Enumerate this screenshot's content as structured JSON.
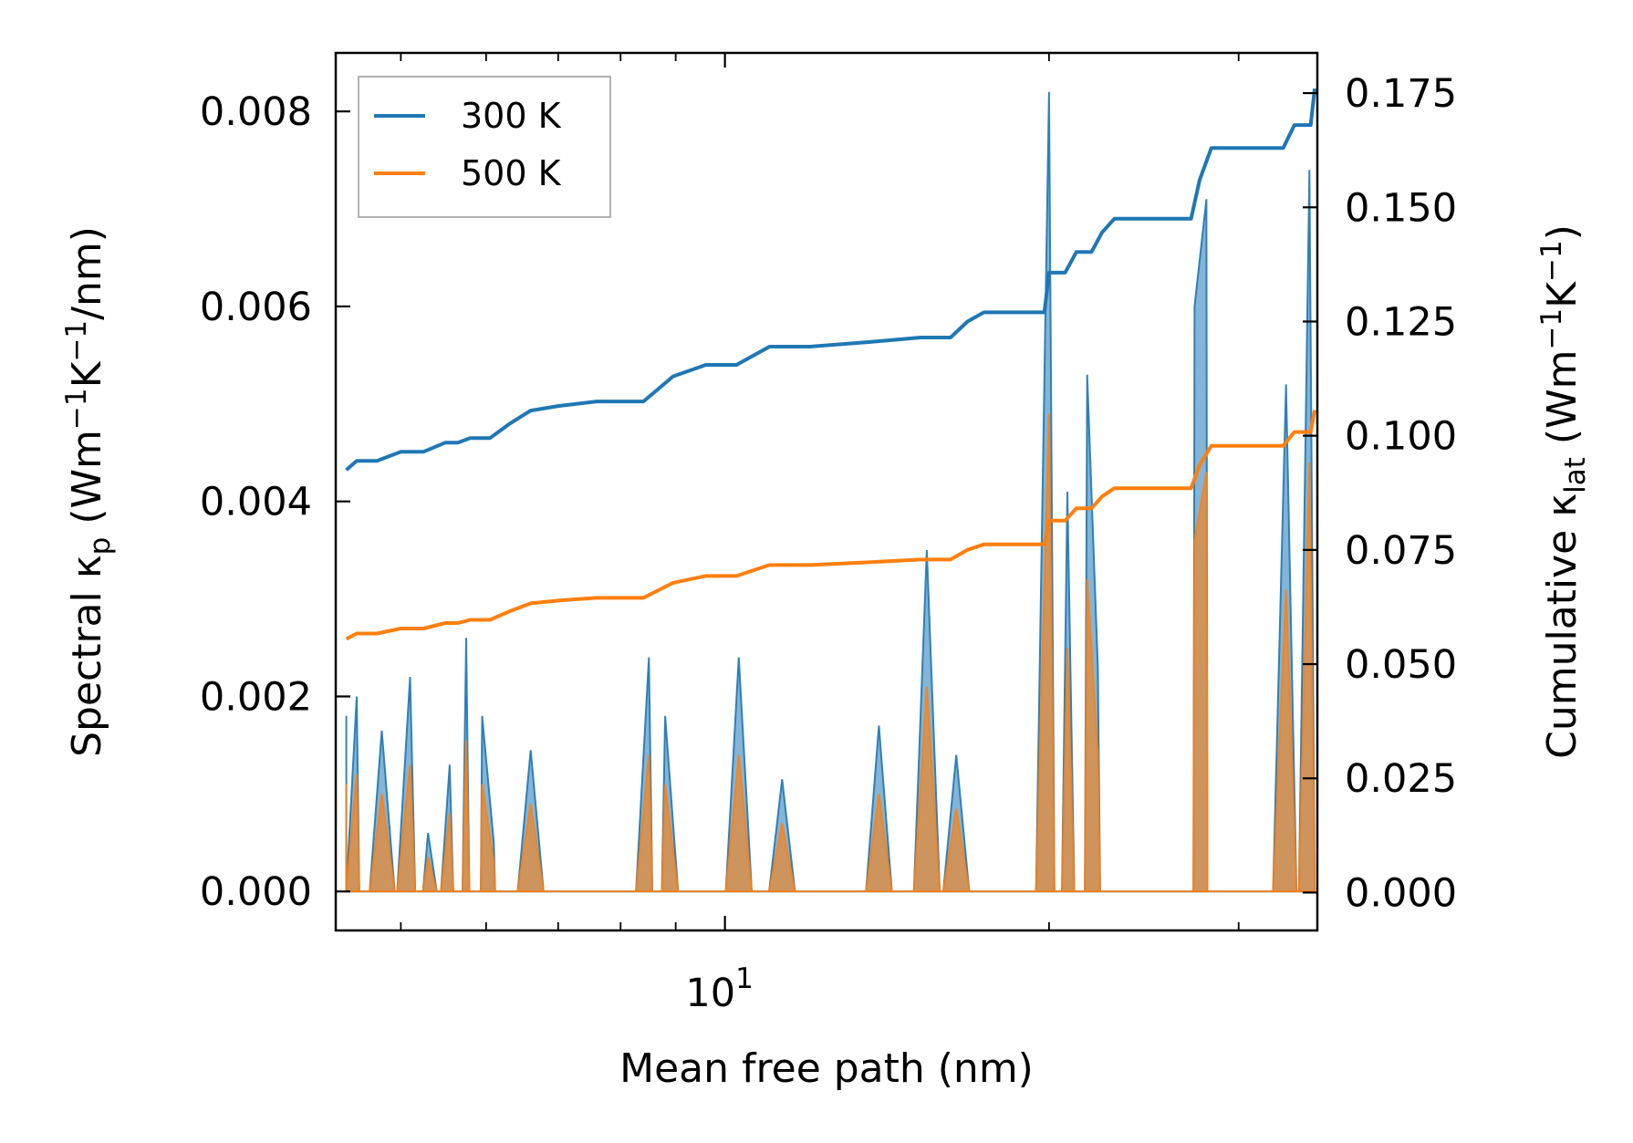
{
  "chart_data": {
    "type": "line",
    "xscale": "log",
    "xlabel": "Mean free path (nm)",
    "xlim": [
      4.35,
      35.5
    ],
    "xticks_major": [
      {
        "value": 10,
        "label": "10",
        "exponent": "1"
      }
    ],
    "xticks_minor": [
      5,
      6,
      7,
      8,
      9,
      20,
      30
    ],
    "ylabel_left": {
      "main": "Spectral κ",
      "sub": "p",
      "rest": " (Wm",
      "sup1": "−1",
      "mid": "K",
      "sup2": "−1",
      "end": "/nm)"
    },
    "ylabel_right": {
      "main": "Cumulative κ",
      "sub": "lat",
      "rest": " (Wm",
      "sup1": "−1",
      "mid": "K",
      "sup2": "−1",
      "end": ")"
    },
    "ylim_left": [
      -0.0004,
      0.0086
    ],
    "ylim_right": [
      -0.0083,
      0.1838
    ],
    "yticks_left": [
      {
        "value": 0.0,
        "label": "0.000"
      },
      {
        "value": 0.002,
        "label": "0.002"
      },
      {
        "value": 0.004,
        "label": "0.004"
      },
      {
        "value": 0.006,
        "label": "0.006"
      },
      {
        "value": 0.008,
        "label": "0.008"
      }
    ],
    "yticks_right": [
      {
        "value": 0.0,
        "label": "0.000"
      },
      {
        "value": 0.025,
        "label": "0.025"
      },
      {
        "value": 0.05,
        "label": "0.050"
      },
      {
        "value": 0.075,
        "label": "0.075"
      },
      {
        "value": 0.1,
        "label": "0.100"
      },
      {
        "value": 0.125,
        "label": "0.125"
      },
      {
        "value": 0.15,
        "label": "0.150"
      },
      {
        "value": 0.175,
        "label": "0.175"
      }
    ],
    "legend": {
      "placement": "top-left"
    },
    "cumulative_series": [
      {
        "name": "300 K",
        "color": "#1f77b4",
        "x": [
          4.45,
          4.55,
          4.75,
          5.0,
          5.25,
          5.5,
          5.65,
          5.8,
          6.05,
          6.3,
          6.6,
          7.0,
          7.6,
          8.4,
          8.95,
          9.6,
          10.25,
          11.0,
          12.0,
          13.6,
          15.2,
          16.2,
          16.8,
          17.4,
          18.3,
          19.8,
          20.0,
          20.7,
          21.2,
          21.9,
          22.4,
          23.0,
          23.6,
          27.1,
          27.6,
          28.3,
          29.0,
          33.0,
          33.8,
          35.0,
          35.3
        ],
        "y": [
          0.0925,
          0.0945,
          0.0945,
          0.0965,
          0.0965,
          0.0985,
          0.0985,
          0.0995,
          0.0995,
          0.1025,
          0.1055,
          0.1065,
          0.1075,
          0.1075,
          0.113,
          0.1155,
          0.1155,
          0.1195,
          0.1195,
          0.1205,
          0.1215,
          0.1215,
          0.125,
          0.127,
          0.127,
          0.127,
          0.1357,
          0.1357,
          0.1402,
          0.1402,
          0.1445,
          0.1475,
          0.1475,
          0.1475,
          0.156,
          0.163,
          0.163,
          0.163,
          0.168,
          0.168,
          0.176
        ],
        "step_points": [
          4.45,
          4.45,
          4.55,
          4.75,
          4.75,
          5.0,
          5.25,
          5.25,
          5.5,
          5.65,
          5.8,
          6.05,
          6.3,
          6.6,
          7.0,
          7.6,
          8.4,
          8.95,
          9.6,
          10.25,
          11.0,
          12.0,
          13.6,
          15.2,
          16.2,
          16.8,
          17.4,
          18.3,
          19.8,
          20.0,
          20.7,
          21.2,
          21.9,
          22.4,
          23.0,
          23.6,
          27.1,
          27.6,
          28.3,
          29.0,
          33.0,
          33.8,
          35.0,
          35.3
        ]
      },
      {
        "name": "500 K",
        "color": "#ff7f0e",
        "x": [
          4.45,
          4.55,
          4.75,
          5.0,
          5.25,
          5.5,
          5.65,
          5.8,
          6.05,
          6.3,
          6.6,
          7.0,
          7.6,
          8.4,
          8.95,
          9.6,
          10.25,
          11.0,
          12.0,
          13.6,
          15.2,
          16.2,
          16.8,
          17.4,
          18.3,
          19.8,
          20.0,
          20.7,
          21.2,
          21.9,
          22.4,
          23.0,
          23.6,
          27.1,
          27.6,
          28.3,
          29.0,
          33.0,
          33.8,
          35.0,
          35.3
        ],
        "y": [
          0.0555,
          0.0567,
          0.0567,
          0.0578,
          0.0578,
          0.059,
          0.059,
          0.0597,
          0.0597,
          0.0615,
          0.0633,
          0.0639,
          0.0645,
          0.0645,
          0.0678,
          0.0693,
          0.0693,
          0.0717,
          0.0717,
          0.0723,
          0.0729,
          0.0729,
          0.075,
          0.0762,
          0.0762,
          0.0762,
          0.0814,
          0.0814,
          0.0841,
          0.0841,
          0.0867,
          0.0885,
          0.0885,
          0.0885,
          0.0936,
          0.0978,
          0.0978,
          0.0978,
          0.1008,
          0.1008,
          0.1056
        ],
        "step_points": []
      }
    ],
    "spectral_series": [
      {
        "name": "300 K",
        "color": "#1f77b4",
        "peaks": [
          [
            4.45,
            0.0018
          ],
          [
            4.55,
            0.002
          ],
          [
            4.8,
            0.00165
          ],
          [
            5.1,
            0.0022
          ],
          [
            5.3,
            0.0006
          ],
          [
            5.55,
            0.0013
          ],
          [
            5.75,
            0.0026
          ],
          [
            5.95,
            0.0018
          ],
          [
            6.1,
            0.0005
          ],
          [
            6.6,
            0.00145
          ],
          [
            8.5,
            0.0024
          ],
          [
            8.8,
            0.0018
          ],
          [
            10.3,
            0.0024
          ],
          [
            11.3,
            0.00115
          ],
          [
            13.9,
            0.0017
          ],
          [
            15.4,
            0.0035
          ],
          [
            16.4,
            0.0014
          ],
          [
            20.0,
            0.0082
          ],
          [
            20.8,
            0.0041
          ],
          [
            21.7,
            0.0053
          ],
          [
            22.2,
            0.0023
          ],
          [
            27.3,
            0.006
          ],
          [
            28.0,
            0.0071
          ],
          [
            33.2,
            0.0052
          ],
          [
            34.9,
            0.0074
          ]
        ]
      },
      {
        "name": "500 K",
        "color": "#ff7f0e",
        "peaks": [
          [
            4.45,
            0.0011
          ],
          [
            4.55,
            0.0012
          ],
          [
            4.8,
            0.001
          ],
          [
            5.1,
            0.0013
          ],
          [
            5.3,
            0.00035
          ],
          [
            5.55,
            0.0008
          ],
          [
            5.75,
            0.00155
          ],
          [
            5.95,
            0.0011
          ],
          [
            6.1,
            0.0003
          ],
          [
            6.6,
            0.0009
          ],
          [
            8.5,
            0.0014
          ],
          [
            8.8,
            0.0011
          ],
          [
            10.3,
            0.0014
          ],
          [
            11.3,
            0.0007
          ],
          [
            13.9,
            0.001
          ],
          [
            15.4,
            0.0021
          ],
          [
            16.4,
            0.00085
          ],
          [
            20.0,
            0.0049
          ],
          [
            20.8,
            0.0025
          ],
          [
            21.7,
            0.0032
          ],
          [
            22.2,
            0.0014
          ],
          [
            27.3,
            0.0036
          ],
          [
            28.0,
            0.0043
          ],
          [
            33.2,
            0.0031
          ],
          [
            34.9,
            0.0044
          ]
        ]
      }
    ]
  },
  "legend": {
    "items": [
      {
        "label": "300 K",
        "color": "#1f77b4"
      },
      {
        "label": "500 K",
        "color": "#ff7f0e"
      }
    ]
  }
}
